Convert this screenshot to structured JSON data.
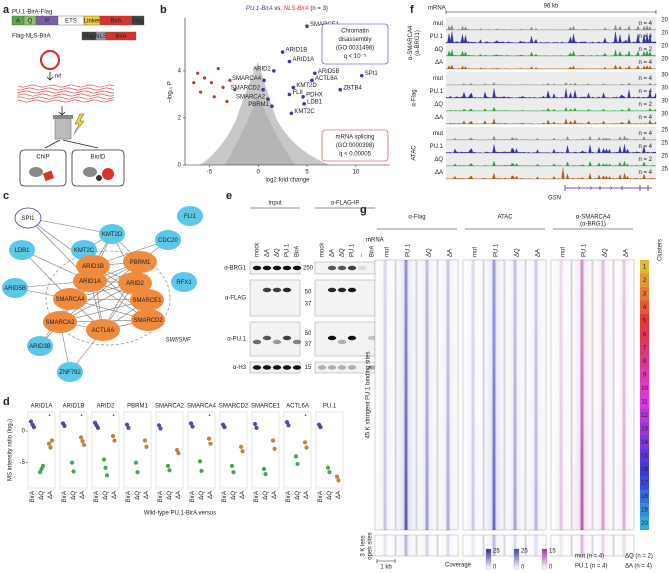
{
  "panel_labels": [
    "a",
    "b",
    "c",
    "d",
    "e",
    "f",
    "g"
  ],
  "a": {
    "construct1": "PU.1-BirA-Flag",
    "domains1": [
      "A",
      "Q",
      "P",
      "ETS",
      "Linker",
      "BirA",
      "Flag"
    ],
    "domain_colors1": [
      "#5aa846",
      "#8dc26b",
      "#7b5ea7",
      "#ffffff",
      "#f2cf3a",
      "#d9342b",
      "#444444"
    ],
    "construct2": "Flag-NLS-BirA",
    "domains2": [
      "Flag",
      "NLS",
      "BirA"
    ],
    "domain_colors2": [
      "#444444",
      "#9a9a9a",
      "#d9342b"
    ],
    "ivt": "ivt",
    "chip": "ChIP",
    "bioid": "BioID"
  },
  "b": {
    "title": [
      "PU.1-BirA",
      " vs. ",
      "NLS-BirA",
      " (n = 3)"
    ],
    "title_colors": [
      "#3a3aa8",
      "#222222",
      "#c0392b",
      "#222222"
    ],
    "xlabel": "log2 fold change",
    "ylabel": "−log₁₀ P",
    "xlim": [
      -7.5,
      13.5
    ],
    "ylim": [
      0,
      6.25
    ],
    "xticks": [
      -5,
      0,
      5,
      10
    ],
    "yticks": [
      0,
      2,
      4
    ],
    "box1": [
      "Chromatin",
      "disassembly",
      "(GO:0031498)",
      "q < 10⁻⁵"
    ],
    "box2": [
      "mRNA splicing",
      "(GO:0000398)",
      "q < 0.00005"
    ],
    "up_color": "#3a3aa8",
    "down_color": "#c0392b",
    "genes": [
      {
        "name": "SMARCE1",
        "x": 5.0,
        "y": 5.9
      },
      {
        "name": "ARID1B",
        "x": 2.5,
        "y": 4.8
      },
      {
        "name": "ARID1A",
        "x": 3.2,
        "y": 4.4
      },
      {
        "name": "ARID2",
        "x": 1.6,
        "y": 4.0
      },
      {
        "name": "ARID5B",
        "x": 5.8,
        "y": 3.9
      },
      {
        "name": "SPI1",
        "x": 10.6,
        "y": 3.8
      },
      {
        "name": "SMARCA4",
        "x": 0.6,
        "y": 3.6
      },
      {
        "name": "ACTL6A",
        "x": 5.5,
        "y": 3.6
      },
      {
        "name": "SMARCD2",
        "x": 0.5,
        "y": 3.2
      },
      {
        "name": "KMT2D",
        "x": 3.6,
        "y": 3.3
      },
      {
        "name": "ZBTB4",
        "x": 8.4,
        "y": 3.2
      },
      {
        "name": "FLII",
        "x": 3.2,
        "y": 3.0
      },
      {
        "name": "PDHX",
        "x": 4.6,
        "y": 2.9
      },
      {
        "name": "SMARCA2",
        "x": 1.0,
        "y": 2.8
      },
      {
        "name": "LDB1",
        "x": 4.7,
        "y": 2.6
      },
      {
        "name": "PBRM1",
        "x": 1.4,
        "y": 2.5
      },
      {
        "name": "KMT2C",
        "x": 3.4,
        "y": 2.2
      }
    ],
    "down": {
      "x": [
        -6.2,
        -5.5,
        -4.8,
        -4.1,
        -3.6,
        -5.9,
        -2.9,
        -4.5,
        -3.2,
        -6.6,
        -2.4
      ],
      "y": [
        3.9,
        3.7,
        3.5,
        4.1,
        3.3,
        3.1,
        3.6,
        2.9,
        2.7,
        3.5,
        3.2
      ]
    }
  },
  "c": {
    "nodes": [
      {
        "name": "SPI1",
        "color": "#ffffff"
      },
      {
        "name": "FLI1",
        "color": "#5bc8e8"
      },
      {
        "name": "KMT2D",
        "color": "#5bc8e8"
      },
      {
        "name": "CDC20",
        "color": "#5bc8e8"
      },
      {
        "name": "LDB1",
        "color": "#5bc8e8"
      },
      {
        "name": "KMT2C",
        "color": "#5bc8e8"
      },
      {
        "name": "ARID1B",
        "color": "#f08a3c"
      },
      {
        "name": "PBRM1",
        "color": "#f08a3c"
      },
      {
        "name": "ARID1A",
        "color": "#f08a3c"
      },
      {
        "name": "ARID2",
        "color": "#f08a3c"
      },
      {
        "name": "RFX1",
        "color": "#5bc8e8"
      },
      {
        "name": "ARID5B",
        "color": "#5bc8e8"
      },
      {
        "name": "SMARCA4",
        "color": "#f08a3c"
      },
      {
        "name": "SMARCE1",
        "color": "#f08a3c"
      },
      {
        "name": "SMARCA2",
        "color": "#f08a3c"
      },
      {
        "name": "SMARCD2",
        "color": "#f08a3c"
      },
      {
        "name": "ACTL6A",
        "color": "#f08a3c"
      },
      {
        "name": "ARID3B",
        "color": "#5bc8e8"
      },
      {
        "name": "ZNF792",
        "color": "#5bc8e8"
      }
    ],
    "complex": "SWI/SNF"
  },
  "d": {
    "ylabel": "MS intensity ratio (log₂)",
    "xlabel": "Wild-type PU.1-BirA versus",
    "categories": [
      "BirA",
      "ΔQ",
      "ΔA"
    ],
    "colors": [
      "#3a3aa8",
      "#2e9e3e",
      "#b07a28"
    ],
    "ylim": [
      -9,
      3
    ],
    "yticks": [
      0,
      -5
    ],
    "proteins": [
      {
        "name": "ARID1A",
        "values": [
          [
            1.5,
            1.0,
            0.6
          ],
          [
            -6.5,
            -6.0,
            -5.5
          ],
          [
            -2.0,
            -2.6,
            -1.5
          ]
        ],
        "star": "*"
      },
      {
        "name": "ARID1B",
        "values": [
          [
            1.2,
            0.8
          ],
          [
            -5.0,
            -6.4
          ],
          [
            -1.0,
            -1.6,
            -2.2
          ]
        ],
        "star": "*"
      },
      {
        "name": "ARID2",
        "values": [
          [
            1.3,
            0.9,
            0.5
          ],
          [
            -4.5,
            -5.8,
            -7.0
          ],
          [
            -0.8,
            -1.5
          ]
        ],
        "star": "*"
      },
      {
        "name": "PBRM1",
        "values": [
          [
            1.0,
            0.5
          ],
          [
            -5.0,
            -6.5
          ],
          [
            -1.5,
            -2.5
          ]
        ]
      },
      {
        "name": "SMARCA2",
        "values": [
          [
            0.9,
            0.4
          ],
          [
            -5.5,
            -6.2
          ],
          [
            -3.0,
            -3.5
          ]
        ]
      },
      {
        "name": "SMARCA4",
        "values": [
          [
            1.2,
            0.7
          ],
          [
            -4.8,
            -6.3
          ],
          [
            -1.2,
            -2.0
          ]
        ],
        "star": "*"
      },
      {
        "name": "SMARCD2",
        "values": [
          [
            1.0,
            0.6
          ],
          [
            -5.5,
            -6.5
          ],
          [
            -2.5,
            -3.2
          ]
        ]
      },
      {
        "name": "SMARCE1",
        "values": [
          [
            1.1,
            0.5
          ],
          [
            -6.0,
            -6.8
          ],
          [
            -1.5,
            -2.8
          ]
        ]
      },
      {
        "name": "ACTL6A",
        "values": [
          [
            1.4,
            0.9
          ],
          [
            -4.0,
            -5.2
          ],
          [
            -1.8,
            -2.6
          ]
        ],
        "star": "*"
      },
      {
        "name": "PU.1",
        "values": [
          [
            1.0,
            0.6
          ],
          [
            -5.8,
            -6.5
          ],
          [
            -7.2,
            -7.8
          ]
        ]
      }
    ]
  },
  "e": {
    "group1": "Input",
    "group2": "α-FLAG-IP",
    "lanes1": [
      "mock",
      "ΔA",
      "ΔQ",
      "PU.1",
      "BirA"
    ],
    "lanes2": [
      "mock",
      "ΔA",
      "ΔQ",
      "PU.1",
      "–",
      "BirA"
    ],
    "rows": [
      {
        "antibody": "α-BRG1",
        "mw": [
          250
        ]
      },
      {
        "antibody": "α-FLAG",
        "mw": [
          50,
          37
        ]
      },
      {
        "antibody": "α-PU.1",
        "mw": [
          50,
          37
        ]
      },
      {
        "antibody": "α-H3",
        "mw": [
          15
        ]
      }
    ],
    "star": "*"
  },
  "f": {
    "mrna": "mRNA",
    "scale": "96 kb",
    "samples": [
      "mut",
      "PU.1",
      "ΔQ",
      "ΔA"
    ],
    "sample_colors": [
      "#8a8a8a",
      "#33339a",
      "#2e9e3e",
      "#a5601f"
    ],
    "groups": [
      {
        "name": [
          "α-SMARCA4",
          "(α-BRG1)"
        ],
        "scale": 20,
        "n": [
          "n = 4",
          "n = 4",
          "n = 2",
          "n = 4"
        ]
      },
      {
        "name": [
          "α-Flag"
        ],
        "scale": 30,
        "n": [
          "n = 4",
          "n = 4",
          "n = 2",
          "n = 4"
        ]
      },
      {
        "name": [
          "ATAC"
        ],
        "scale": 25,
        "n": [
          "n = 4",
          "n = 4",
          "n = 2",
          "n = 4"
        ]
      }
    ],
    "gene": "GSN"
  },
  "g": {
    "groups": [
      [
        "α-Flag"
      ],
      [
        "ATAC"
      ],
      [
        "α-SMARCA4",
        "(α-BRG1)"
      ]
    ],
    "group_colors": [
      "#2a2a96",
      "#3b3bb0",
      "#9b2f93"
    ],
    "samples": [
      "mut",
      "PU.1",
      "ΔQ",
      "ΔA"
    ],
    "mrna": "mRNA",
    "main_label": "45 K stringent PU.1 binding sites",
    "less_label": [
      "3 K less",
      "open sites"
    ],
    "clusters_title": "Clusters",
    "clusters": [
      1,
      2,
      3,
      4,
      5,
      6,
      7,
      8,
      9,
      10,
      11,
      12,
      13,
      14,
      15,
      16,
      17,
      18,
      19,
      20
    ],
    "scale_bar": "1 kb",
    "coverage": "Coverage",
    "coverage_scales": [
      [
        25,
        0
      ],
      [
        25,
        0
      ],
      [
        15,
        0
      ]
    ],
    "legend": [
      "mut (n = 4)",
      "PU.1 (n = 4)",
      "ΔQ (n = 2)",
      "ΔA (n = 4)"
    ]
  }
}
